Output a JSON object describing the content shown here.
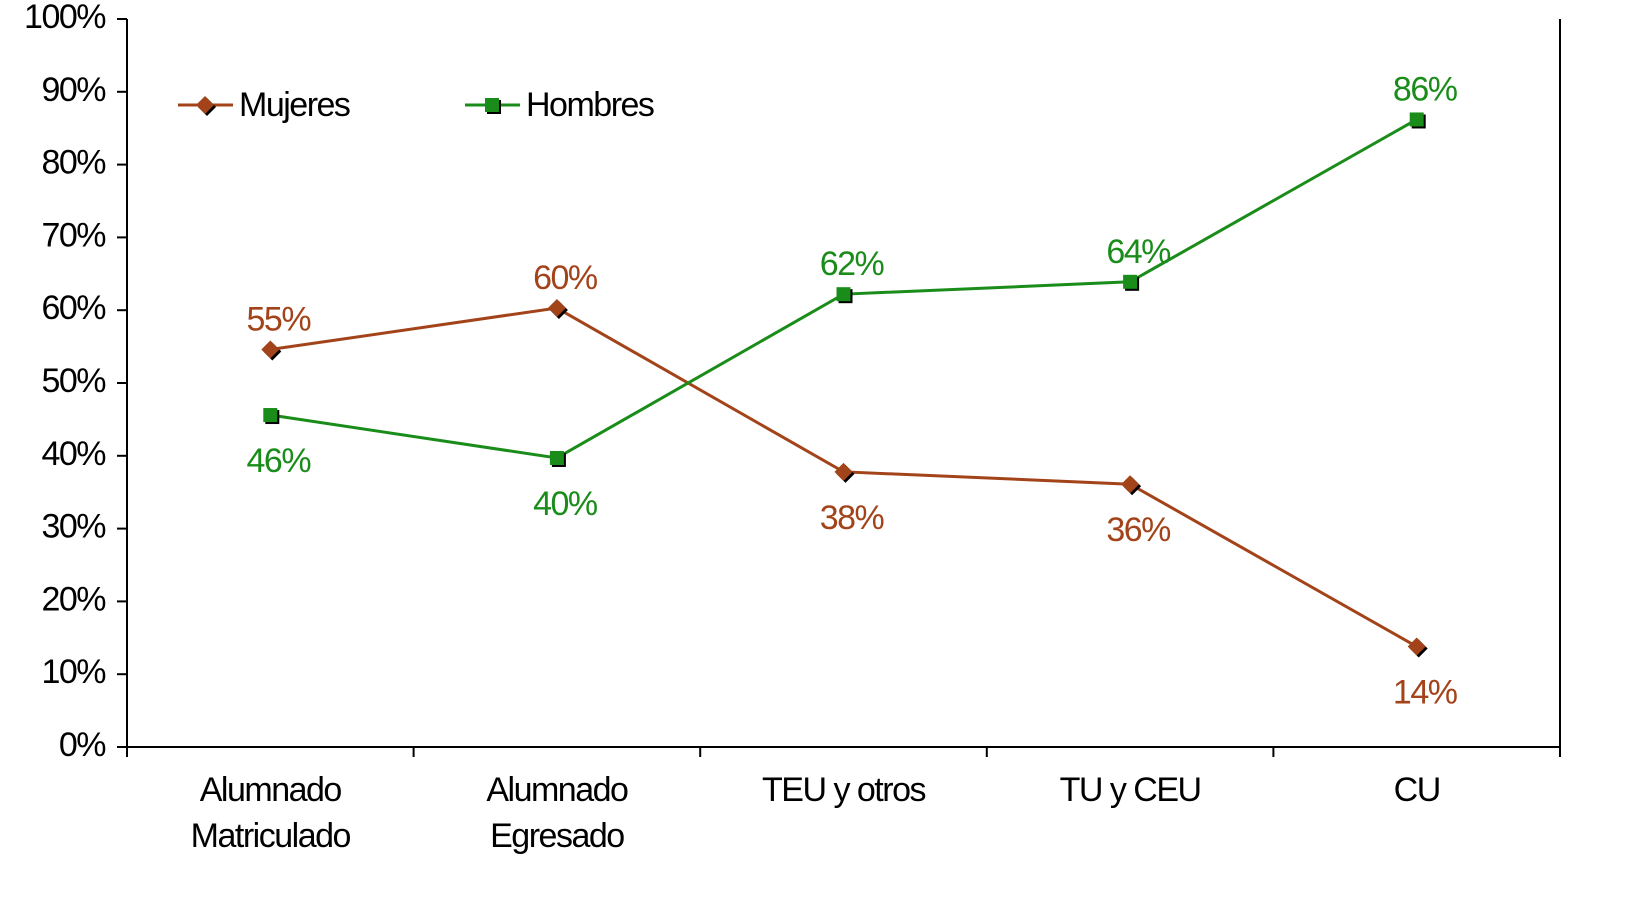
{
  "chart_data": {
    "type": "line",
    "categories": [
      "Alumnado\nMatriculado",
      "Alumnado\nEgresado",
      "TEU y otros",
      "TU y CEU",
      "CU"
    ],
    "series": [
      {
        "name": "Mujeres",
        "color": "#a3431a",
        "marker": "diamond",
        "values": [
          54.6,
          60.3,
          37.8,
          36.1,
          13.8
        ],
        "value_labels": [
          "55%",
          "60%",
          "38%",
          "36%",
          "14%"
        ]
      },
      {
        "name": "Hombres",
        "color": "#1a8c1a",
        "marker": "square",
        "values": [
          45.6,
          39.7,
          62.2,
          63.9,
          86.2
        ],
        "value_labels": [
          "46%",
          "40%",
          "62%",
          "64%",
          "86%"
        ]
      }
    ],
    "ylim": [
      0,
      100
    ],
    "yticks": [
      {
        "value": 0,
        "label": "0%"
      },
      {
        "value": 10,
        "label": "10%"
      },
      {
        "value": 20,
        "label": "20%"
      },
      {
        "value": 30,
        "label": "30%"
      },
      {
        "value": 40,
        "label": "40%"
      },
      {
        "value": 50,
        "label": "50%"
      },
      {
        "value": 60,
        "label": "60%"
      },
      {
        "value": 70,
        "label": "70%"
      },
      {
        "value": 80,
        "label": "80%"
      },
      {
        "value": 90,
        "label": "90%"
      },
      {
        "value": 100,
        "label": "100%"
      }
    ],
    "grid": false,
    "legend": "top-left"
  }
}
